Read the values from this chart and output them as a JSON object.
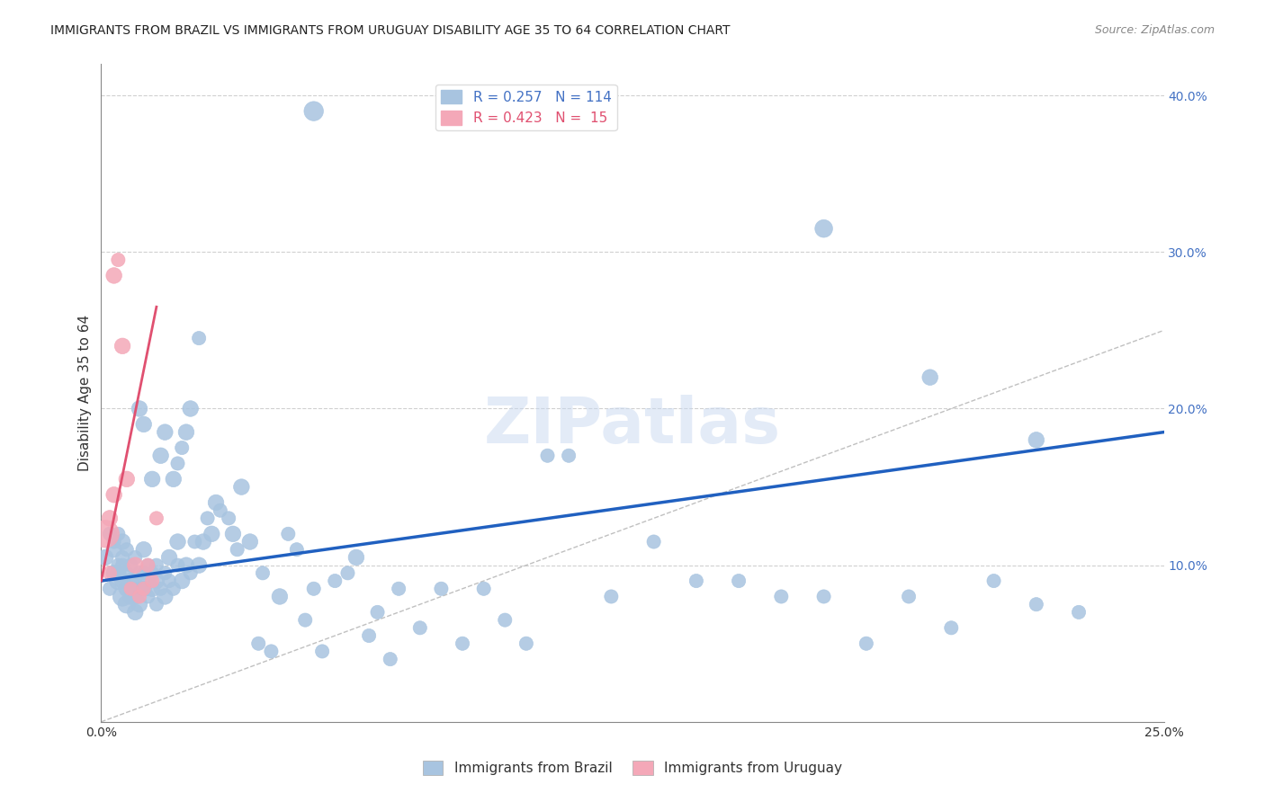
{
  "title": "IMMIGRANTS FROM BRAZIL VS IMMIGRANTS FROM URUGUAY DISABILITY AGE 35 TO 64 CORRELATION CHART",
  "source": "Source: ZipAtlas.com",
  "xlabel": "",
  "ylabel": "Disability Age 35 to 64",
  "xlim": [
    0,
    0.25
  ],
  "ylim": [
    0,
    0.42
  ],
  "xticks": [
    0.0,
    0.05,
    0.1,
    0.15,
    0.2,
    0.25
  ],
  "yticks": [
    0.0,
    0.1,
    0.2,
    0.3,
    0.4
  ],
  "xtick_labels": [
    "0.0%",
    "",
    "",
    "",
    "",
    "25.0%"
  ],
  "ytick_labels": [
    "",
    "10.0%",
    "20.0%",
    "30.0%",
    "40.0%"
  ],
  "brazil_R": 0.257,
  "brazil_N": 114,
  "uruguay_R": 0.423,
  "uruguay_N": 15,
  "brazil_color": "#a8c4e0",
  "brazil_line_color": "#2060c0",
  "uruguay_color": "#f4a8b8",
  "uruguay_line_color": "#e05070",
  "diagonal_color": "#c0c0c0",
  "background_color": "#ffffff",
  "grid_color": "#d0d0d0",
  "brazil_scatter_x": [
    0.001,
    0.002,
    0.002,
    0.003,
    0.003,
    0.003,
    0.004,
    0.004,
    0.004,
    0.004,
    0.005,
    0.005,
    0.005,
    0.005,
    0.005,
    0.006,
    0.006,
    0.006,
    0.006,
    0.007,
    0.007,
    0.007,
    0.008,
    0.008,
    0.008,
    0.008,
    0.009,
    0.009,
    0.009,
    0.009,
    0.01,
    0.01,
    0.01,
    0.01,
    0.011,
    0.011,
    0.011,
    0.012,
    0.012,
    0.012,
    0.013,
    0.013,
    0.013,
    0.014,
    0.014,
    0.015,
    0.015,
    0.015,
    0.016,
    0.016,
    0.017,
    0.017,
    0.018,
    0.018,
    0.018,
    0.019,
    0.019,
    0.02,
    0.02,
    0.021,
    0.021,
    0.022,
    0.023,
    0.023,
    0.024,
    0.025,
    0.026,
    0.027,
    0.028,
    0.03,
    0.031,
    0.032,
    0.033,
    0.035,
    0.037,
    0.038,
    0.04,
    0.042,
    0.044,
    0.046,
    0.048,
    0.05,
    0.052,
    0.055,
    0.058,
    0.06,
    0.063,
    0.065,
    0.068,
    0.07,
    0.075,
    0.08,
    0.085,
    0.09,
    0.095,
    0.1,
    0.105,
    0.11,
    0.12,
    0.13,
    0.14,
    0.15,
    0.16,
    0.17,
    0.18,
    0.19,
    0.2,
    0.21,
    0.22,
    0.23,
    0.05,
    0.17,
    0.195,
    0.22
  ],
  "brazil_scatter_y": [
    0.105,
    0.12,
    0.085,
    0.095,
    0.11,
    0.115,
    0.09,
    0.095,
    0.1,
    0.12,
    0.08,
    0.09,
    0.1,
    0.105,
    0.115,
    0.075,
    0.085,
    0.095,
    0.11,
    0.08,
    0.09,
    0.1,
    0.07,
    0.08,
    0.09,
    0.105,
    0.075,
    0.085,
    0.095,
    0.2,
    0.085,
    0.095,
    0.11,
    0.19,
    0.08,
    0.09,
    0.1,
    0.085,
    0.095,
    0.155,
    0.075,
    0.09,
    0.1,
    0.085,
    0.17,
    0.08,
    0.095,
    0.185,
    0.09,
    0.105,
    0.085,
    0.155,
    0.1,
    0.115,
    0.165,
    0.09,
    0.175,
    0.1,
    0.185,
    0.095,
    0.2,
    0.115,
    0.1,
    0.245,
    0.115,
    0.13,
    0.12,
    0.14,
    0.135,
    0.13,
    0.12,
    0.11,
    0.15,
    0.115,
    0.05,
    0.095,
    0.045,
    0.08,
    0.12,
    0.11,
    0.065,
    0.085,
    0.045,
    0.09,
    0.095,
    0.105,
    0.055,
    0.07,
    0.04,
    0.085,
    0.06,
    0.085,
    0.05,
    0.085,
    0.065,
    0.05,
    0.17,
    0.17,
    0.08,
    0.115,
    0.09,
    0.09,
    0.08,
    0.08,
    0.05,
    0.08,
    0.06,
    0.09,
    0.075,
    0.07,
    0.39,
    0.315,
    0.22,
    0.18
  ],
  "brazil_scatter_size": [
    20,
    15,
    15,
    20,
    20,
    15,
    25,
    20,
    15,
    15,
    30,
    20,
    15,
    15,
    20,
    25,
    20,
    15,
    15,
    20,
    20,
    15,
    20,
    20,
    15,
    15,
    20,
    15,
    15,
    20,
    20,
    15,
    20,
    20,
    15,
    20,
    15,
    20,
    15,
    20,
    15,
    20,
    15,
    15,
    20,
    20,
    15,
    20,
    15,
    20,
    15,
    20,
    15,
    20,
    15,
    20,
    15,
    20,
    20,
    15,
    20,
    15,
    20,
    15,
    20,
    15,
    20,
    20,
    15,
    15,
    20,
    15,
    20,
    20,
    15,
    15,
    15,
    20,
    15,
    15,
    15,
    15,
    15,
    15,
    15,
    20,
    15,
    15,
    15,
    15,
    15,
    15,
    15,
    15,
    15,
    15,
    15,
    15,
    15,
    15,
    15,
    15,
    15,
    15,
    15,
    15,
    15,
    15,
    15,
    15,
    30,
    25,
    20,
    20
  ],
  "uruguay_scatter_x": [
    0.001,
    0.002,
    0.002,
    0.003,
    0.003,
    0.004,
    0.005,
    0.006,
    0.007,
    0.008,
    0.009,
    0.01,
    0.011,
    0.012,
    0.013
  ],
  "uruguay_scatter_y": [
    0.12,
    0.13,
    0.095,
    0.145,
    0.285,
    0.295,
    0.24,
    0.155,
    0.085,
    0.1,
    0.08,
    0.085,
    0.1,
    0.09,
    0.13
  ],
  "uruguay_scatter_size": [
    60,
    20,
    15,
    20,
    20,
    15,
    20,
    20,
    15,
    20,
    15,
    15,
    15,
    15,
    15
  ],
  "brazil_trend": [
    0.0,
    0.25
  ],
  "brazil_trend_y0": 0.09,
  "brazil_trend_y1": 0.185,
  "uruguay_trend": [
    0.0,
    0.013
  ],
  "uruguay_trend_y0": 0.09,
  "uruguay_trend_y1": 0.265,
  "watermark": "ZIPatlas",
  "legend_brazil_label": "R = 0.257   N = 114",
  "legend_uruguay_label": "R = 0.423   N =  15"
}
